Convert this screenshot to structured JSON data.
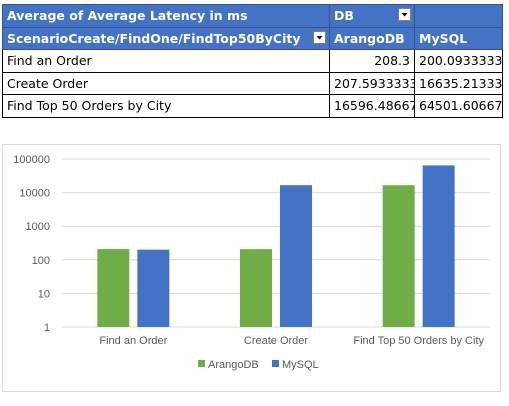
{
  "pivot": {
    "title": "Average of Average Latency in ms",
    "column_field": "DB",
    "row_field": "ScenarioCreate/FindOne/FindTop50ByCity",
    "columns": [
      "ArangoDB",
      "MySQL"
    ],
    "rows": [
      {
        "label": "Find an Order",
        "values": [
          "208.3",
          "200.0933333"
        ]
      },
      {
        "label": "Create Order",
        "values": [
          "207.5933333",
          "16635.21333"
        ]
      },
      {
        "label": "Find Top 50 Orders by City",
        "values": [
          "16596.48667",
          "64501.60667"
        ]
      }
    ],
    "filter_icon": "dropdown-filter-icon"
  },
  "chart_data": {
    "type": "bar",
    "scale": "log",
    "categories": [
      "Find an Order",
      "Create Order",
      "Find Top 50 Orders by City"
    ],
    "series": [
      {
        "name": "ArangoDB",
        "color": "#70ad47",
        "values": [
          208.3,
          207.5933333,
          16596.48667
        ]
      },
      {
        "name": "MySQL",
        "color": "#4472c4",
        "values": [
          200.0933333,
          16635.21333,
          64501.60667
        ]
      }
    ],
    "y_ticks": [
      "1",
      "10",
      "100",
      "1000",
      "10000",
      "100000"
    ],
    "ylim": [
      1,
      100000
    ],
    "grid": true,
    "legend_position": "bottom"
  }
}
